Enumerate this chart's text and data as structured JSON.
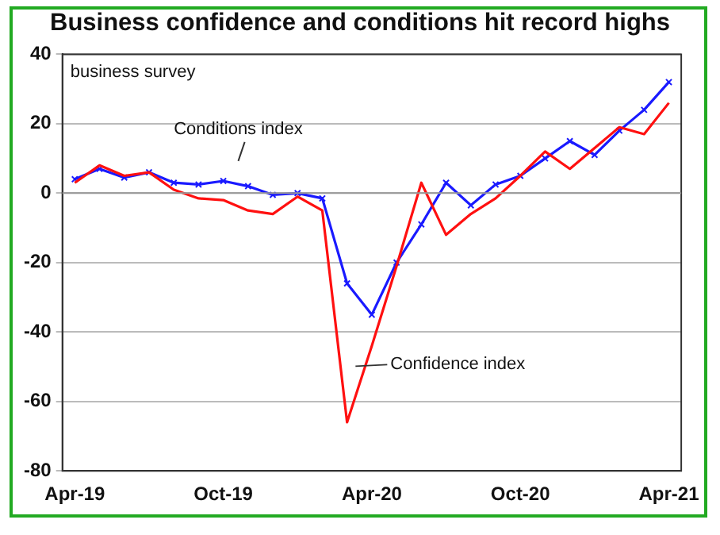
{
  "chart_data": {
    "type": "line",
    "title": "Business confidence and conditions hit record highs",
    "subtitle": "business survey",
    "categories": [
      "Apr-19",
      null,
      null,
      null,
      null,
      null,
      "Oct-19",
      null,
      null,
      null,
      null,
      null,
      "Apr-20",
      null,
      null,
      null,
      null,
      null,
      "Oct-20",
      null,
      null,
      null,
      null,
      null,
      "Apr-21"
    ],
    "series": [
      {
        "name": "Confidence index",
        "color": "#ff1010",
        "marker": "none",
        "values": [
          3,
          8,
          5,
          6,
          1,
          -1.5,
          -2,
          -5,
          -6,
          -1,
          -5,
          -66,
          -44,
          -21,
          3,
          -12,
          -6,
          -1.5,
          5,
          12,
          7,
          13,
          19,
          17,
          26
        ]
      },
      {
        "name": "Conditions index",
        "color": "#1a1aff",
        "marker": "cross",
        "values": [
          4,
          7,
          4.5,
          6,
          3,
          2.5,
          3.5,
          2,
          -0.5,
          0,
          -1.5,
          -26,
          -35,
          -20,
          -9,
          3,
          -3.5,
          2.5,
          5,
          10,
          15,
          11,
          18,
          24,
          32
        ]
      }
    ],
    "ylim": [
      -80,
      40
    ],
    "yticks": [
      -80,
      -60,
      -40,
      -20,
      0,
      20,
      40
    ],
    "grid": "y",
    "legend": false,
    "line_style": "solid"
  }
}
